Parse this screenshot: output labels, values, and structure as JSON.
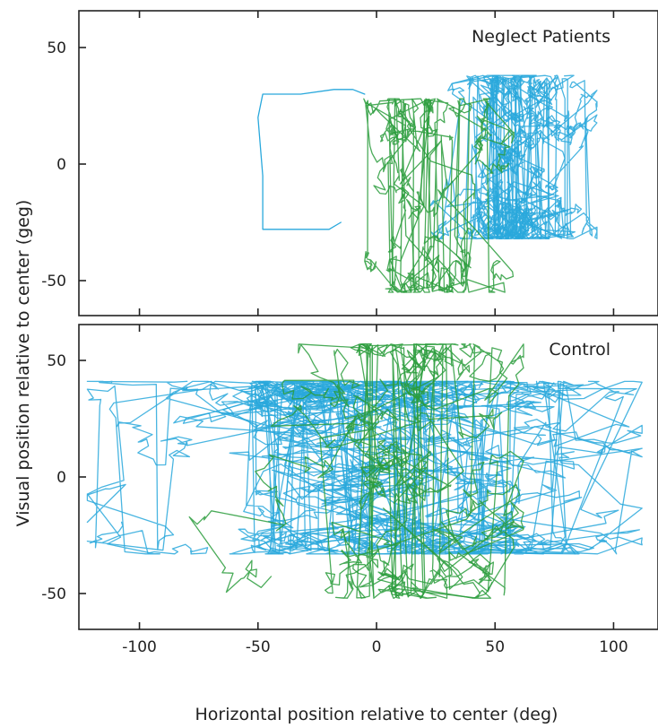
{
  "chart_data": [
    {
      "panel": "top",
      "type": "line",
      "title": "Neglect Patients",
      "x_range": [
        -125,
        115
      ],
      "y_range": [
        -65,
        65
      ],
      "x_ticks": [
        -100,
        -50,
        0,
        50,
        100
      ],
      "y_ticks": [
        -50,
        0,
        50
      ],
      "series": [
        {
          "color": "#29a8dc",
          "x_spread": [
            18,
            93
          ],
          "y_spread": [
            -32,
            38
          ],
          "x_center": 55,
          "y_center": 5,
          "density": 1,
          "outlier_path": [
            [
              -5,
              30
            ],
            [
              -10,
              32
            ],
            [
              -18,
              32
            ],
            [
              -32,
              30
            ],
            [
              -48,
              30
            ],
            [
              -50,
              20
            ],
            [
              -48,
              -5
            ],
            [
              -48,
              -28
            ],
            [
              -20,
              -28
            ],
            [
              -15,
              -25
            ]
          ]
        },
        {
          "color": "#2a9c3c",
          "x_spread": [
            -12,
            58
          ],
          "y_spread": [
            -55,
            28
          ],
          "x_center": 20,
          "y_center": -18,
          "density": 0.45
        }
      ]
    },
    {
      "panel": "bottom",
      "type": "line",
      "title": "Control",
      "x_range": [
        -125,
        115
      ],
      "y_range": [
        -65,
        65
      ],
      "x_ticks": [
        -100,
        -50,
        0,
        50,
        100
      ],
      "x_tick_labels": [
        "-100",
        "-50",
        "0",
        "50",
        "100"
      ],
      "y_ticks": [
        -50,
        0,
        50
      ],
      "series": [
        {
          "color": "#29a8dc",
          "x_spread": [
            -122,
            112
          ],
          "y_spread": [
            -33,
            41
          ],
          "x_center": 0,
          "y_center": 3,
          "density": 1.4
        },
        {
          "color": "#2a9c3c",
          "x_spread": [
            -85,
            62
          ],
          "y_spread": [
            -52,
            57
          ],
          "x_center": 1,
          "y_center": 5,
          "density": 0.6
        }
      ]
    }
  ],
  "ylabel": "Visual position relative to center (geg)",
  "xlabel": "Horizontal position relative to center  (deg)"
}
